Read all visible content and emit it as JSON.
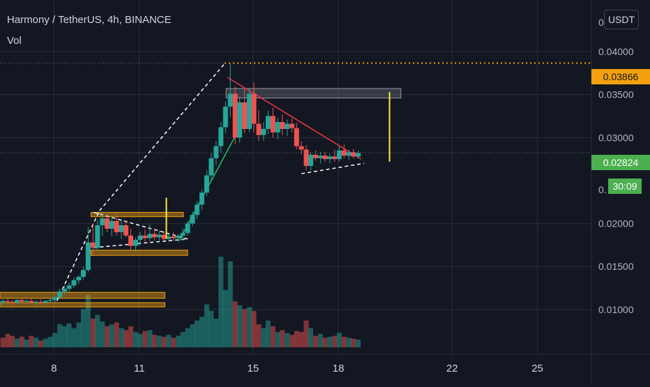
{
  "header": {
    "symbol_title": "Harmony / TetherUS, 4h, BINANCE",
    "volume_label": "Vol",
    "currency_button": "USDT"
  },
  "price_axis": {
    "top_partial_label": "0",
    "lower_partial_label": "0.",
    "current_price": "0.02824",
    "high_price": "0.03866",
    "countdown": "30:09"
  },
  "chart_data": {
    "type": "candlestick",
    "y_ticks": [
      0.04,
      0.035,
      0.03,
      0.02,
      0.015,
      0.01
    ],
    "y_tick_labels": [
      "0.04000",
      "0.03500",
      "0.03000",
      "0.02000",
      "0.01500",
      "0.01000"
    ],
    "x_tick_labels": [
      "8",
      "11",
      "15",
      "18",
      "22",
      "25"
    ],
    "x_ticks": [
      8,
      11,
      15,
      18,
      22,
      25
    ],
    "ylim": [
      0.0048,
      0.046
    ],
    "xlim": [
      6.1,
      26.9
    ],
    "grid": true,
    "last_price": 0.02824,
    "high_price": 0.03866,
    "candles": [
      [
        6.2,
        0.0108,
        0.0112,
        0.0104,
        0.011
      ],
      [
        6.37,
        0.011,
        0.0113,
        0.0106,
        0.0109
      ],
      [
        6.53,
        0.0109,
        0.0111,
        0.0105,
        0.0108
      ],
      [
        6.7,
        0.0108,
        0.0112,
        0.0106,
        0.0111
      ],
      [
        6.87,
        0.0111,
        0.0114,
        0.0107,
        0.0109
      ],
      [
        7.03,
        0.0109,
        0.0112,
        0.0106,
        0.011
      ],
      [
        7.2,
        0.011,
        0.0113,
        0.0107,
        0.0108
      ],
      [
        7.37,
        0.0108,
        0.0111,
        0.0105,
        0.0109
      ],
      [
        7.53,
        0.0109,
        0.0112,
        0.0106,
        0.0108
      ],
      [
        7.7,
        0.0108,
        0.0111,
        0.0106,
        0.011
      ],
      [
        7.87,
        0.011,
        0.0114,
        0.0107,
        0.0111
      ],
      [
        8.03,
        0.0111,
        0.0116,
        0.0108,
        0.0114
      ],
      [
        8.2,
        0.0114,
        0.0124,
        0.0112,
        0.0121
      ],
      [
        8.37,
        0.0121,
        0.0128,
        0.0117,
        0.0124
      ],
      [
        8.53,
        0.0124,
        0.0131,
        0.012,
        0.0128
      ],
      [
        8.7,
        0.0128,
        0.0137,
        0.0125,
        0.0134
      ],
      [
        8.87,
        0.0134,
        0.014,
        0.013,
        0.0138
      ],
      [
        9.03,
        0.0138,
        0.015,
        0.0135,
        0.0146
      ],
      [
        9.2,
        0.0146,
        0.0196,
        0.0143,
        0.0178
      ],
      [
        9.37,
        0.0178,
        0.02,
        0.0162,
        0.0172
      ],
      [
        9.53,
        0.0172,
        0.0204,
        0.0168,
        0.0198
      ],
      [
        9.7,
        0.0198,
        0.0214,
        0.0186,
        0.0206
      ],
      [
        9.87,
        0.0206,
        0.0212,
        0.019,
        0.0194
      ],
      [
        10.03,
        0.0194,
        0.0208,
        0.0185,
        0.0203
      ],
      [
        10.2,
        0.0203,
        0.0212,
        0.0186,
        0.019
      ],
      [
        10.37,
        0.019,
        0.0205,
        0.0182,
        0.0198
      ],
      [
        10.53,
        0.0198,
        0.0203,
        0.0184,
        0.0186
      ],
      [
        10.7,
        0.0186,
        0.0194,
        0.0168,
        0.0174
      ],
      [
        10.87,
        0.0174,
        0.0184,
        0.0167,
        0.0181
      ],
      [
        11.03,
        0.0181,
        0.019,
        0.0175,
        0.0186
      ],
      [
        11.2,
        0.0186,
        0.0193,
        0.0179,
        0.0183
      ],
      [
        11.37,
        0.0183,
        0.0199,
        0.0179,
        0.0188
      ],
      [
        11.53,
        0.0188,
        0.0194,
        0.018,
        0.0184
      ],
      [
        11.7,
        0.0184,
        0.0192,
        0.0179,
        0.0187
      ],
      [
        11.87,
        0.0187,
        0.0191,
        0.018,
        0.0182
      ],
      [
        12.03,
        0.0182,
        0.0188,
        0.0179,
        0.0185
      ],
      [
        12.2,
        0.0185,
        0.019,
        0.018,
        0.0183
      ],
      [
        12.37,
        0.0183,
        0.0188,
        0.0179,
        0.0186
      ],
      [
        12.53,
        0.0186,
        0.0195,
        0.018,
        0.0189
      ],
      [
        12.7,
        0.0189,
        0.0203,
        0.0186,
        0.02
      ],
      [
        12.87,
        0.02,
        0.0214,
        0.0197,
        0.021
      ],
      [
        13.03,
        0.021,
        0.0226,
        0.0205,
        0.0222
      ],
      [
        13.2,
        0.0222,
        0.024,
        0.0216,
        0.0236
      ],
      [
        13.37,
        0.0236,
        0.0262,
        0.0232,
        0.0256
      ],
      [
        13.53,
        0.0256,
        0.0282,
        0.025,
        0.0276
      ],
      [
        13.7,
        0.0276,
        0.0296,
        0.0268,
        0.029
      ],
      [
        13.87,
        0.029,
        0.0318,
        0.0282,
        0.0312
      ],
      [
        14.03,
        0.0312,
        0.0342,
        0.0305,
        0.0336
      ],
      [
        14.2,
        0.0336,
        0.0386,
        0.0324,
        0.0351
      ],
      [
        14.37,
        0.0351,
        0.036,
        0.0292,
        0.03
      ],
      [
        14.53,
        0.03,
        0.0348,
        0.0294,
        0.0341
      ],
      [
        14.7,
        0.0341,
        0.0356,
        0.0305,
        0.031
      ],
      [
        14.87,
        0.031,
        0.0358,
        0.0306,
        0.0351
      ],
      [
        15.03,
        0.0351,
        0.0364,
        0.0306,
        0.0316
      ],
      [
        15.2,
        0.0316,
        0.0332,
        0.0296,
        0.0303
      ],
      [
        15.37,
        0.0303,
        0.0318,
        0.0296,
        0.031
      ],
      [
        15.53,
        0.031,
        0.0331,
        0.0304,
        0.0325
      ],
      [
        15.7,
        0.0325,
        0.0335,
        0.03,
        0.0306
      ],
      [
        15.87,
        0.0306,
        0.0323,
        0.0298,
        0.0318
      ],
      [
        16.03,
        0.0318,
        0.0327,
        0.0303,
        0.031
      ],
      [
        16.2,
        0.031,
        0.0321,
        0.0302,
        0.0316
      ],
      [
        16.37,
        0.0316,
        0.0322,
        0.0306,
        0.0311
      ],
      [
        16.53,
        0.0311,
        0.0317,
        0.0286,
        0.029
      ],
      [
        16.7,
        0.029,
        0.0296,
        0.028,
        0.0286
      ],
      [
        16.87,
        0.0286,
        0.0291,
        0.0262,
        0.0267
      ],
      [
        17.03,
        0.0267,
        0.0283,
        0.0262,
        0.028
      ],
      [
        17.2,
        0.028,
        0.0285,
        0.0273,
        0.0276
      ],
      [
        17.37,
        0.0276,
        0.0283,
        0.027,
        0.0279
      ],
      [
        17.53,
        0.0279,
        0.0283,
        0.0272,
        0.0275
      ],
      [
        17.7,
        0.0275,
        0.0281,
        0.027,
        0.0278
      ],
      [
        17.87,
        0.0278,
        0.0286,
        0.0272,
        0.0275
      ],
      [
        18.03,
        0.0275,
        0.029,
        0.0272,
        0.0285
      ],
      [
        18.2,
        0.0285,
        0.0292,
        0.0276,
        0.0279
      ],
      [
        18.37,
        0.0279,
        0.0286,
        0.0274,
        0.0283
      ],
      [
        18.53,
        0.0283,
        0.0287,
        0.0276,
        0.0278
      ],
      [
        18.7,
        0.0278,
        0.0285,
        0.0276,
        0.0282
      ]
    ],
    "volumes": [
      [
        6.2,
        0.1,
        0
      ],
      [
        6.37,
        0.14,
        0
      ],
      [
        6.53,
        0.12,
        0
      ],
      [
        6.7,
        0.09,
        1
      ],
      [
        6.87,
        0.11,
        0
      ],
      [
        7.03,
        0.08,
        1
      ],
      [
        7.2,
        0.12,
        0
      ],
      [
        7.37,
        0.1,
        1
      ],
      [
        7.53,
        0.07,
        0
      ],
      [
        7.7,
        0.09,
        1
      ],
      [
        7.87,
        0.11,
        1
      ],
      [
        8.03,
        0.15,
        1
      ],
      [
        8.2,
        0.24,
        1
      ],
      [
        8.37,
        0.22,
        1
      ],
      [
        8.53,
        0.25,
        1
      ],
      [
        8.7,
        0.2,
        1
      ],
      [
        8.87,
        0.26,
        1
      ],
      [
        9.03,
        0.4,
        1
      ],
      [
        9.2,
        0.55,
        1
      ],
      [
        9.37,
        0.3,
        0
      ],
      [
        9.53,
        0.34,
        1
      ],
      [
        9.7,
        0.27,
        1
      ],
      [
        9.87,
        0.22,
        0
      ],
      [
        10.03,
        0.24,
        1
      ],
      [
        10.2,
        0.26,
        0
      ],
      [
        10.37,
        0.2,
        1
      ],
      [
        10.53,
        0.18,
        0
      ],
      [
        10.7,
        0.22,
        0
      ],
      [
        10.87,
        0.16,
        1
      ],
      [
        11.03,
        0.14,
        1
      ],
      [
        11.2,
        0.17,
        0
      ],
      [
        11.37,
        0.18,
        1
      ],
      [
        11.53,
        0.13,
        0
      ],
      [
        11.7,
        0.12,
        1
      ],
      [
        11.87,
        0.11,
        0
      ],
      [
        12.03,
        0.13,
        1
      ],
      [
        12.2,
        0.1,
        0
      ],
      [
        12.37,
        0.12,
        1
      ],
      [
        12.53,
        0.16,
        1
      ],
      [
        12.7,
        0.2,
        1
      ],
      [
        12.87,
        0.24,
        1
      ],
      [
        13.03,
        0.28,
        1
      ],
      [
        13.2,
        0.32,
        1
      ],
      [
        13.37,
        0.45,
        1
      ],
      [
        13.53,
        0.38,
        1
      ],
      [
        13.7,
        0.3,
        1
      ],
      [
        13.87,
        0.95,
        1
      ],
      [
        14.03,
        0.6,
        1
      ],
      [
        14.2,
        0.9,
        1
      ],
      [
        14.37,
        0.48,
        0
      ],
      [
        14.53,
        0.44,
        1
      ],
      [
        14.7,
        0.4,
        0
      ],
      [
        14.87,
        0.42,
        1
      ],
      [
        15.03,
        0.38,
        0
      ],
      [
        15.2,
        0.24,
        0
      ],
      [
        15.37,
        0.2,
        1
      ],
      [
        15.53,
        0.28,
        1
      ],
      [
        15.7,
        0.22,
        0
      ],
      [
        15.87,
        0.16,
        1
      ],
      [
        16.03,
        0.18,
        0
      ],
      [
        16.2,
        0.15,
        1
      ],
      [
        16.37,
        0.13,
        0
      ],
      [
        16.53,
        0.17,
        0
      ],
      [
        16.7,
        0.16,
        0
      ],
      [
        16.87,
        0.28,
        0
      ],
      [
        17.03,
        0.2,
        1
      ],
      [
        17.2,
        0.12,
        0
      ],
      [
        17.37,
        0.14,
        1
      ],
      [
        17.53,
        0.1,
        0
      ],
      [
        17.7,
        0.11,
        1
      ],
      [
        17.87,
        0.12,
        0
      ],
      [
        18.03,
        0.15,
        1
      ],
      [
        18.2,
        0.11,
        0
      ],
      [
        18.37,
        0.1,
        1
      ],
      [
        18.53,
        0.09,
        0
      ],
      [
        18.7,
        0.08,
        1
      ]
    ],
    "drawings": {
      "zones": [
        {
          "x1": 6.1,
          "x2": 11.9,
          "y1": 0.012,
          "y2": 0.0113,
          "color": "#f5a10f"
        },
        {
          "x1": 6.1,
          "x2": 11.9,
          "y1": 0.0108,
          "y2": 0.0103,
          "color": "#f5a10f"
        },
        {
          "x1": 9.3,
          "x2": 12.7,
          "y1": 0.0169,
          "y2": 0.0163,
          "color": "#f5a10f"
        },
        {
          "x1": 9.3,
          "x2": 12.55,
          "y1": 0.0213,
          "y2": 0.0208,
          "color": "#f5a10f"
        },
        {
          "x1": 14.05,
          "x2": 20.2,
          "y1": 0.0357,
          "y2": 0.0346,
          "color": "#787b86"
        }
      ],
      "horizontal_dotted": {
        "x1": 14.0,
        "x2": 26.9,
        "y": 0.03866,
        "color": "#f5a10f"
      },
      "trendlines": [
        {
          "x1": 14.1,
          "y1": 0.037,
          "x2": 18.8,
          "y2": 0.0275,
          "color": "#f23645",
          "dash": false
        },
        {
          "x1": 12.4,
          "y1": 0.018,
          "x2": 14.8,
          "y2": 0.0328,
          "color": "#22c55e",
          "dash": false
        },
        {
          "x1": 8.1,
          "y1": 0.011,
          "x2": 9.6,
          "y2": 0.0215,
          "color": "#ffffff",
          "dash": true
        },
        {
          "x1": 9.6,
          "y1": 0.0215,
          "x2": 14.0,
          "y2": 0.0386,
          "color": "#ffffff",
          "dash": true
        },
        {
          "x1": 9.4,
          "y1": 0.0213,
          "x2": 12.7,
          "y2": 0.0182,
          "color": "#ffffff",
          "dash": true
        },
        {
          "x1": 9.4,
          "y1": 0.0172,
          "x2": 12.7,
          "y2": 0.0182,
          "color": "#ffffff",
          "dash": true
        },
        {
          "x1": 16.7,
          "y1": 0.0258,
          "x2": 18.9,
          "y2": 0.027,
          "color": "#ffffff",
          "dash": true
        }
      ],
      "measure_lines": [
        {
          "x": 11.95,
          "y1": 0.023,
          "y2": 0.0183,
          "color": "#ffeb3b"
        },
        {
          "x": 19.8,
          "y1": 0.0353,
          "y2": 0.0272,
          "color": "#ffeb3b"
        }
      ]
    }
  }
}
